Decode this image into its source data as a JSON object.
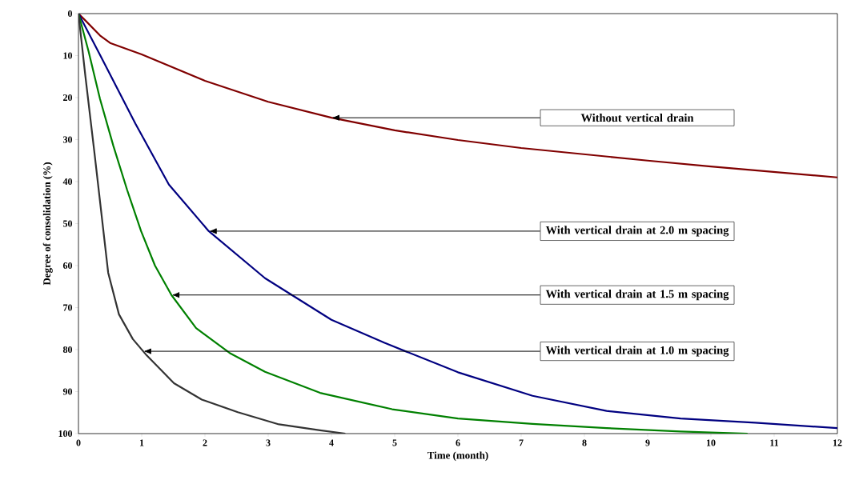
{
  "chart_data": {
    "type": "line",
    "xlabel": "Time (month)",
    "ylabel": "Degree of consolidation (%)",
    "xlim": [
      0,
      12
    ],
    "xticks": [
      0,
      1,
      2,
      3,
      4,
      5,
      6,
      7,
      8,
      9,
      10,
      11,
      12
    ],
    "ylim": [
      100,
      0
    ],
    "yticks": [
      0,
      10,
      20,
      30,
      40,
      50,
      60,
      70,
      80,
      90,
      100
    ],
    "grid": false,
    "marker": "none",
    "line_style": "solid",
    "series": [
      {
        "color": "#800000",
        "x": [
          0,
          0.1,
          0.34,
          0.5,
          1,
          2,
          3,
          4,
          5,
          6,
          7,
          8,
          9,
          10,
          11,
          12
        ],
        "values": [
          0,
          1.5,
          5.2,
          7,
          9.7,
          16,
          21,
          24.8,
          27.8,
          30.1,
          32,
          33.5,
          35,
          36.4,
          37.7,
          39
        ]
      },
      {
        "color": "#000080",
        "x": [
          0,
          0.34,
          0.9,
          1.43,
          2.06,
          2.95,
          4,
          4.84,
          6,
          7.18,
          8.35,
          9.52,
          10.7,
          12
        ],
        "values": [
          0,
          9.8,
          26.2,
          40.7,
          51.8,
          63,
          72.9,
          78.4,
          85.4,
          91,
          94.6,
          96.4,
          97.4,
          98.7
        ]
      },
      {
        "color": "#008000",
        "x": [
          0,
          0.16,
          0.34,
          0.55,
          0.77,
          0.99,
          1.21,
          1.47,
          1.86,
          2.39,
          2.95,
          3.82,
          4.96,
          6,
          7.18,
          8.35,
          9.52,
          10.58
        ],
        "values": [
          0,
          9,
          20.3,
          31.4,
          42,
          51.8,
          60,
          67,
          74.9,
          80.8,
          85.3,
          90.3,
          94.2,
          96.4,
          97.7,
          98.7,
          99.5,
          100
        ]
      },
      {
        "color": "#333333",
        "x": [
          0,
          0.11,
          0.25,
          0.34,
          0.47,
          0.64,
          0.86,
          1.08,
          1.51,
          1.95,
          2.52,
          3.17,
          3.82,
          4.22
        ],
        "values": [
          0,
          15,
          32.8,
          44.6,
          61.7,
          71.6,
          77.5,
          81.4,
          88,
          91.9,
          94.9,
          97.8,
          99.2,
          100
        ]
      }
    ],
    "annotations": [
      "Without vertical drain",
      "With vertical drain at 2.0 m spacing",
      "With vertical drain at 1.5 m spacing",
      "With vertical drain at 1.0 m spacing"
    ]
  }
}
